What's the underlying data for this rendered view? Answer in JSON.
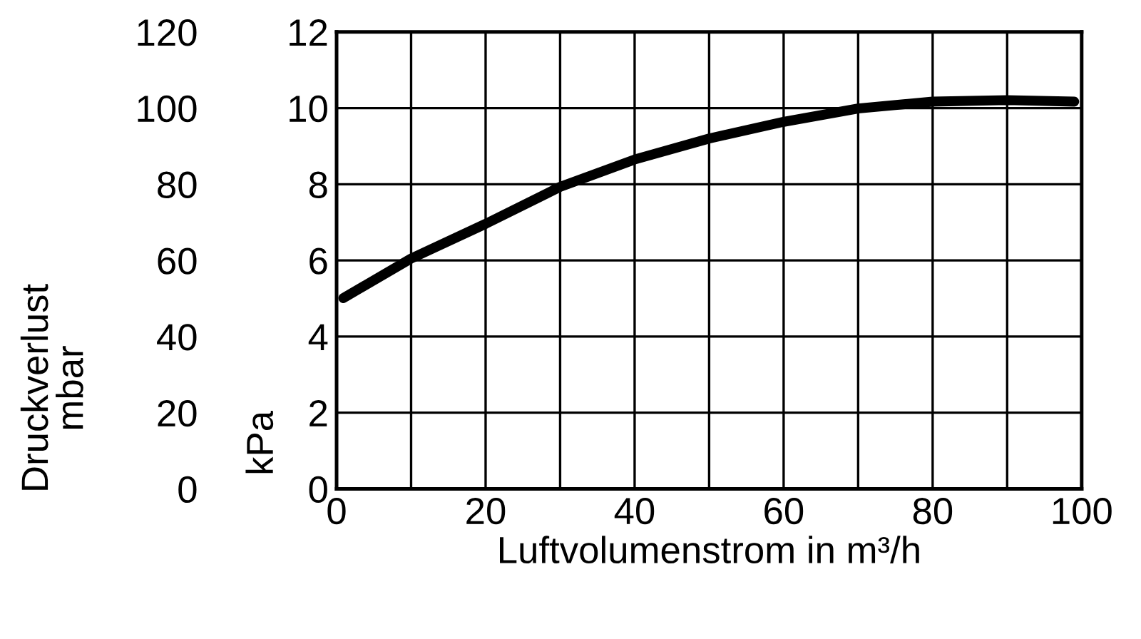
{
  "chart_data": {
    "type": "line",
    "xlabel": "Luftvolumenstrom in m³/h",
    "ylabel": "kPa",
    "y2label": "Druckverlust\nmbar",
    "x": [
      0.9,
      10,
      20,
      30,
      40,
      50,
      60,
      70,
      80,
      90,
      99
    ],
    "series": [
      {
        "color": "#000000",
        "values": [
          5.01,
          6.05,
          6.96,
          7.93,
          8.65,
          9.2,
          9.64,
          9.99,
          10.17,
          10.21,
          10.17
        ]
      }
    ],
    "xlim": [
      0,
      100
    ],
    "xticks": [
      0,
      {
        "value": 10,
        "label": null
      },
      20,
      {
        "value": 30,
        "label": null
      },
      40,
      {
        "value": 50,
        "label": null
      },
      60,
      {
        "value": 70,
        "label": null
      },
      80,
      {
        "value": 90,
        "label": null
      },
      100
    ],
    "ylim": [
      0,
      12
    ],
    "yticks": [
      0,
      2,
      4,
      6,
      8,
      10,
      12
    ],
    "y2lim": [
      0,
      120
    ],
    "y2ticks": [
      0,
      20,
      40,
      60,
      80,
      100,
      120
    ],
    "grid": true,
    "marker": "none",
    "line_style": "solid"
  }
}
